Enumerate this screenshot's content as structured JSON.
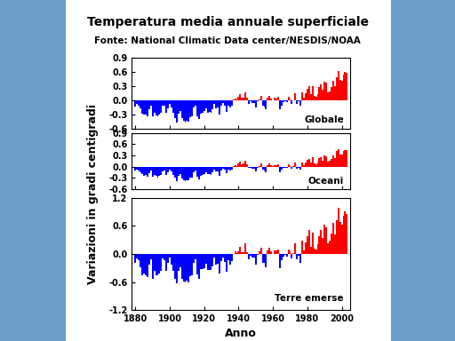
{
  "title": "Temperatura media annuale superficiale",
  "subtitle": "Fonte: National Climatic Data center/NESDIS/NOAA",
  "ylabel": "Variazioni in gradi centigradi",
  "xlabel": "Anno",
  "chart_data": [
    {
      "type": "bar",
      "annotation": "Globale",
      "tick_labels": "y",
      "xlim": [
        1878,
        2005
      ],
      "xticks": [
        1880,
        1900,
        1920,
        1940,
        1960,
        1980,
        2000
      ],
      "ylim": [
        -0.6,
        0.9
      ],
      "yticks": [
        -0.6,
        -0.3,
        0.0,
        0.3,
        0.6,
        0.9
      ],
      "x": [
        1880,
        1881,
        1882,
        1883,
        1884,
        1885,
        1886,
        1887,
        1888,
        1889,
        1890,
        1891,
        1892,
        1893,
        1894,
        1895,
        1896,
        1897,
        1898,
        1899,
        1900,
        1901,
        1902,
        1903,
        1904,
        1905,
        1906,
        1907,
        1908,
        1909,
        1910,
        1911,
        1912,
        1913,
        1914,
        1915,
        1916,
        1917,
        1918,
        1919,
        1920,
        1921,
        1922,
        1923,
        1924,
        1925,
        1926,
        1927,
        1928,
        1929,
        1930,
        1931,
        1932,
        1933,
        1934,
        1935,
        1936,
        1937,
        1938,
        1939,
        1940,
        1941,
        1942,
        1943,
        1944,
        1945,
        1946,
        1947,
        1948,
        1949,
        1950,
        1951,
        1952,
        1953,
        1954,
        1955,
        1956,
        1957,
        1958,
        1959,
        1960,
        1961,
        1962,
        1963,
        1964,
        1965,
        1966,
        1967,
        1968,
        1969,
        1970,
        1971,
        1972,
        1973,
        1974,
        1975,
        1976,
        1977,
        1978,
        1979,
        1980,
        1981,
        1982,
        1983,
        1984,
        1985,
        1986,
        1987,
        1988,
        1989,
        1990,
        1991,
        1992,
        1993,
        1994,
        1995,
        1996,
        1997,
        1998,
        1999,
        2000,
        2001,
        2002,
        2003
      ],
      "values": [
        -0.12,
        -0.08,
        -0.1,
        -0.17,
        -0.27,
        -0.3,
        -0.3,
        -0.33,
        -0.19,
        -0.1,
        -0.34,
        -0.26,
        -0.31,
        -0.33,
        -0.3,
        -0.25,
        -0.11,
        -0.11,
        -0.26,
        -0.16,
        -0.08,
        -0.15,
        -0.26,
        -0.37,
        -0.46,
        -0.28,
        -0.22,
        -0.38,
        -0.43,
        -0.46,
        -0.42,
        -0.44,
        -0.35,
        -0.34,
        -0.15,
        -0.1,
        -0.33,
        -0.39,
        -0.27,
        -0.25,
        -0.23,
        -0.16,
        -0.25,
        -0.24,
        -0.25,
        -0.18,
        -0.07,
        -0.16,
        -0.15,
        -0.3,
        -0.11,
        -0.06,
        -0.11,
        -0.24,
        -0.1,
        -0.14,
        -0.1,
        0.02,
        0.04,
        0.02,
        0.08,
        0.14,
        0.06,
        0.06,
        0.18,
        0.06,
        -0.07,
        -0.02,
        -0.06,
        -0.06,
        -0.15,
        -0.02,
        0.03,
        0.1,
        -0.11,
        -0.13,
        -0.18,
        0.06,
        0.1,
        0.04,
        0.01,
        0.06,
        0.05,
        0.07,
        -0.19,
        -0.1,
        -0.04,
        -0.01,
        -0.04,
        0.08,
        0.03,
        -0.07,
        0.01,
        0.15,
        -0.08,
        -0.02,
        -0.11,
        0.17,
        0.06,
        0.16,
        0.25,
        0.31,
        0.13,
        0.31,
        0.09,
        0.07,
        0.14,
        0.28,
        0.34,
        0.22,
        0.4,
        0.38,
        0.17,
        0.2,
        0.28,
        0.42,
        0.3,
        0.5,
        0.63,
        0.43,
        0.42,
        0.54,
        0.6,
        0.58
      ],
      "colors": [
        "blue",
        "blue",
        "blue",
        "blue",
        "blue",
        "blue",
        "blue",
        "blue",
        "blue",
        "blue",
        "blue",
        "blue",
        "blue",
        "blue",
        "blue",
        "blue",
        "blue",
        "blue",
        "blue",
        "blue",
        "blue",
        "blue",
        "blue",
        "blue",
        "blue",
        "blue",
        "blue",
        "blue",
        "blue",
        "blue",
        "blue",
        "blue",
        "blue",
        "blue",
        "blue",
        "blue",
        "blue",
        "blue",
        "blue",
        "blue",
        "blue",
        "blue",
        "blue",
        "blue",
        "blue",
        "blue",
        "blue",
        "blue",
        "blue",
        "blue",
        "blue",
        "blue",
        "blue",
        "blue",
        "blue",
        "blue",
        "blue",
        "red",
        "red",
        "red",
        "red",
        "red",
        "red",
        "red",
        "red",
        "red",
        "blue",
        "blue",
        "blue",
        "blue",
        "blue",
        "blue",
        "red",
        "red",
        "blue",
        "blue",
        "blue",
        "red",
        "red",
        "red",
        "red",
        "red",
        "red",
        "red",
        "blue",
        "blue",
        "blue",
        "blue",
        "blue",
        "red",
        "red",
        "blue",
        "red",
        "red",
        "blue",
        "blue",
        "blue",
        "red",
        "red",
        "red",
        "red",
        "red",
        "red",
        "red",
        "red",
        "red",
        "red",
        "red",
        "red",
        "red",
        "red",
        "red",
        "red",
        "red",
        "red",
        "red",
        "red",
        "red",
        "red",
        "red",
        "red",
        "red",
        "red",
        "red"
      ]
    },
    {
      "type": "bar",
      "annotation": "Oceani",
      "tick_labels": "y",
      "xlim": [
        1878,
        2005
      ],
      "xticks": [
        1880,
        1900,
        1920,
        1940,
        1960,
        1980,
        2000
      ],
      "ylim": [
        -0.6,
        0.9
      ],
      "yticks": [
        -0.6,
        -0.3,
        0.0,
        0.3,
        0.6,
        0.9
      ],
      "x": [
        1880,
        1881,
        1882,
        1883,
        1884,
        1885,
        1886,
        1887,
        1888,
        1889,
        1890,
        1891,
        1892,
        1893,
        1894,
        1895,
        1896,
        1897,
        1898,
        1899,
        1900,
        1901,
        1902,
        1903,
        1904,
        1905,
        1906,
        1907,
        1908,
        1909,
        1910,
        1911,
        1912,
        1913,
        1914,
        1915,
        1916,
        1917,
        1918,
        1919,
        1920,
        1921,
        1922,
        1923,
        1924,
        1925,
        1926,
        1927,
        1928,
        1929,
        1930,
        1931,
        1932,
        1933,
        1934,
        1935,
        1936,
        1937,
        1938,
        1939,
        1940,
        1941,
        1942,
        1943,
        1944,
        1945,
        1946,
        1947,
        1948,
        1949,
        1950,
        1951,
        1952,
        1953,
        1954,
        1955,
        1956,
        1957,
        1958,
        1959,
        1960,
        1961,
        1962,
        1963,
        1964,
        1965,
        1966,
        1967,
        1968,
        1969,
        1970,
        1971,
        1972,
        1973,
        1974,
        1975,
        1976,
        1977,
        1978,
        1979,
        1980,
        1981,
        1982,
        1983,
        1984,
        1985,
        1986,
        1987,
        1988,
        1989,
        1990,
        1991,
        1992,
        1993,
        1994,
        1995,
        1996,
        1997,
        1998,
        1999,
        2000,
        2001,
        2002,
        2003
      ],
      "values": [
        -0.1,
        -0.08,
        -0.09,
        -0.14,
        -0.2,
        -0.24,
        -0.22,
        -0.26,
        -0.18,
        -0.1,
        -0.26,
        -0.22,
        -0.25,
        -0.28,
        -0.25,
        -0.22,
        -0.12,
        -0.1,
        -0.22,
        -0.15,
        -0.08,
        -0.12,
        -0.22,
        -0.3,
        -0.38,
        -0.25,
        -0.2,
        -0.32,
        -0.35,
        -0.38,
        -0.36,
        -0.37,
        -0.3,
        -0.28,
        -0.14,
        -0.1,
        -0.27,
        -0.33,
        -0.25,
        -0.22,
        -0.2,
        -0.14,
        -0.2,
        -0.19,
        -0.21,
        -0.15,
        -0.07,
        -0.13,
        -0.12,
        -0.24,
        -0.09,
        -0.05,
        -0.08,
        -0.18,
        -0.08,
        -0.1,
        -0.08,
        0.03,
        0.04,
        0.03,
        0.09,
        0.13,
        0.07,
        0.08,
        0.16,
        0.07,
        -0.04,
        -0.02,
        -0.05,
        -0.05,
        -0.12,
        -0.03,
        0.02,
        0.08,
        -0.08,
        -0.11,
        -0.14,
        0.05,
        0.08,
        0.04,
        0.02,
        0.05,
        0.04,
        0.06,
        -0.14,
        -0.08,
        -0.03,
        -0.02,
        -0.03,
        0.07,
        0.02,
        -0.06,
        0.02,
        0.11,
        -0.06,
        -0.02,
        -0.08,
        0.12,
        0.05,
        0.12,
        0.18,
        0.21,
        0.11,
        0.25,
        0.08,
        0.06,
        0.11,
        0.24,
        0.26,
        0.17,
        0.3,
        0.29,
        0.14,
        0.16,
        0.21,
        0.31,
        0.24,
        0.41,
        0.48,
        0.33,
        0.33,
        0.42,
        0.45,
        0.44
      ],
      "colors": [
        "blue",
        "blue",
        "blue",
        "blue",
        "blue",
        "blue",
        "blue",
        "blue",
        "blue",
        "blue",
        "blue",
        "blue",
        "blue",
        "blue",
        "blue",
        "blue",
        "blue",
        "blue",
        "blue",
        "blue",
        "blue",
        "blue",
        "blue",
        "blue",
        "blue",
        "blue",
        "blue",
        "blue",
        "blue",
        "blue",
        "blue",
        "blue",
        "blue",
        "blue",
        "blue",
        "blue",
        "blue",
        "blue",
        "blue",
        "blue",
        "blue",
        "blue",
        "blue",
        "blue",
        "blue",
        "blue",
        "blue",
        "blue",
        "blue",
        "blue",
        "blue",
        "blue",
        "blue",
        "blue",
        "blue",
        "blue",
        "blue",
        "red",
        "red",
        "red",
        "red",
        "red",
        "red",
        "red",
        "red",
        "red",
        "blue",
        "blue",
        "blue",
        "blue",
        "blue",
        "blue",
        "red",
        "red",
        "blue",
        "blue",
        "blue",
        "red",
        "red",
        "red",
        "red",
        "red",
        "red",
        "red",
        "blue",
        "blue",
        "blue",
        "blue",
        "blue",
        "red",
        "red",
        "blue",
        "red",
        "red",
        "blue",
        "blue",
        "blue",
        "red",
        "red",
        "red",
        "red",
        "red",
        "red",
        "red",
        "red",
        "red",
        "red",
        "red",
        "red",
        "red",
        "red",
        "red",
        "red",
        "red",
        "red",
        "red",
        "red",
        "red",
        "red",
        "red",
        "red",
        "red",
        "red",
        "red"
      ]
    },
    {
      "type": "bar",
      "annotation": "Terre emerse",
      "xlim": [
        1878,
        2005
      ],
      "xticks": [
        1880,
        1900,
        1920,
        1940,
        1960,
        1980,
        2000
      ],
      "ylim": [
        -1.2,
        1.2
      ],
      "yticks": [
        -1.2,
        -0.6,
        0.0,
        0.6,
        1.2
      ],
      "x": [
        1880,
        1881,
        1882,
        1883,
        1884,
        1885,
        1886,
        1887,
        1888,
        1889,
        1890,
        1891,
        1892,
        1893,
        1894,
        1895,
        1896,
        1897,
        1898,
        1899,
        1900,
        1901,
        1902,
        1903,
        1904,
        1905,
        1906,
        1907,
        1908,
        1909,
        1910,
        1911,
        1912,
        1913,
        1914,
        1915,
        1916,
        1917,
        1918,
        1919,
        1920,
        1921,
        1922,
        1923,
        1924,
        1925,
        1926,
        1927,
        1928,
        1929,
        1930,
        1931,
        1932,
        1933,
        1934,
        1935,
        1936,
        1937,
        1938,
        1939,
        1940,
        1941,
        1942,
        1943,
        1944,
        1945,
        1946,
        1947,
        1948,
        1949,
        1950,
        1951,
        1952,
        1953,
        1954,
        1955,
        1956,
        1957,
        1958,
        1959,
        1960,
        1961,
        1962,
        1963,
        1964,
        1965,
        1966,
        1967,
        1968,
        1969,
        1970,
        1971,
        1972,
        1973,
        1974,
        1975,
        1976,
        1977,
        1978,
        1979,
        1980,
        1981,
        1982,
        1983,
        1984,
        1985,
        1986,
        1987,
        1988,
        1989,
        1990,
        1991,
        1992,
        1993,
        1994,
        1995,
        1996,
        1997,
        1998,
        1999,
        2000,
        2001,
        2002,
        2003
      ],
      "values": [
        -0.18,
        -0.1,
        -0.14,
        -0.28,
        -0.45,
        -0.42,
        -0.46,
        -0.5,
        -0.22,
        -0.12,
        -0.52,
        -0.36,
        -0.45,
        -0.46,
        -0.42,
        -0.35,
        -0.1,
        -0.14,
        -0.35,
        -0.18,
        -0.08,
        -0.22,
        -0.35,
        -0.52,
        -0.62,
        -0.36,
        -0.28,
        -0.52,
        -0.58,
        -0.6,
        -0.56,
        -0.6,
        -0.48,
        -0.46,
        -0.18,
        -0.12,
        -0.44,
        -0.52,
        -0.32,
        -0.32,
        -0.3,
        -0.2,
        -0.34,
        -0.34,
        -0.34,
        -0.26,
        -0.08,
        -0.22,
        -0.2,
        -0.42,
        -0.15,
        -0.08,
        -0.16,
        -0.38,
        -0.14,
        -0.22,
        -0.15,
        0.01,
        0.05,
        0.02,
        0.06,
        0.16,
        0.04,
        0.03,
        0.22,
        0.04,
        -0.12,
        -0.03,
        -0.08,
        -0.08,
        -0.22,
        -0.02,
        0.05,
        0.14,
        -0.18,
        -0.18,
        -0.28,
        0.08,
        0.14,
        0.05,
        0.01,
        0.08,
        0.07,
        0.09,
        -0.3,
        -0.14,
        -0.06,
        -0.02,
        -0.06,
        0.1,
        0.05,
        -0.09,
        0.02,
        0.22,
        -0.12,
        -0.03,
        -0.18,
        0.28,
        0.08,
        0.24,
        0.38,
        0.52,
        0.16,
        0.46,
        0.11,
        0.09,
        0.21,
        0.38,
        0.52,
        0.34,
        0.62,
        0.57,
        0.22,
        0.28,
        0.44,
        0.66,
        0.42,
        0.72,
        0.98,
        0.68,
        0.62,
        0.82,
        0.92,
        0.86
      ],
      "colors": [
        "blue",
        "blue",
        "blue",
        "blue",
        "blue",
        "blue",
        "blue",
        "blue",
        "blue",
        "blue",
        "blue",
        "blue",
        "blue",
        "blue",
        "blue",
        "blue",
        "blue",
        "blue",
        "blue",
        "blue",
        "blue",
        "blue",
        "blue",
        "blue",
        "blue",
        "blue",
        "blue",
        "blue",
        "blue",
        "blue",
        "blue",
        "blue",
        "blue",
        "blue",
        "blue",
        "blue",
        "blue",
        "blue",
        "blue",
        "blue",
        "blue",
        "blue",
        "blue",
        "blue",
        "blue",
        "blue",
        "blue",
        "blue",
        "blue",
        "blue",
        "blue",
        "blue",
        "blue",
        "blue",
        "blue",
        "blue",
        "blue",
        "red",
        "red",
        "red",
        "red",
        "red",
        "red",
        "red",
        "red",
        "red",
        "blue",
        "blue",
        "blue",
        "blue",
        "blue",
        "blue",
        "red",
        "red",
        "blue",
        "blue",
        "blue",
        "red",
        "red",
        "red",
        "red",
        "red",
        "red",
        "red",
        "blue",
        "blue",
        "blue",
        "blue",
        "blue",
        "red",
        "red",
        "blue",
        "red",
        "red",
        "blue",
        "blue",
        "blue",
        "red",
        "red",
        "red",
        "red",
        "red",
        "red",
        "red",
        "red",
        "red",
        "red",
        "red",
        "red",
        "red",
        "red",
        "red",
        "red",
        "red",
        "red",
        "red",
        "red",
        "red",
        "red",
        "red",
        "red",
        "red",
        "red",
        "red"
      ]
    }
  ]
}
